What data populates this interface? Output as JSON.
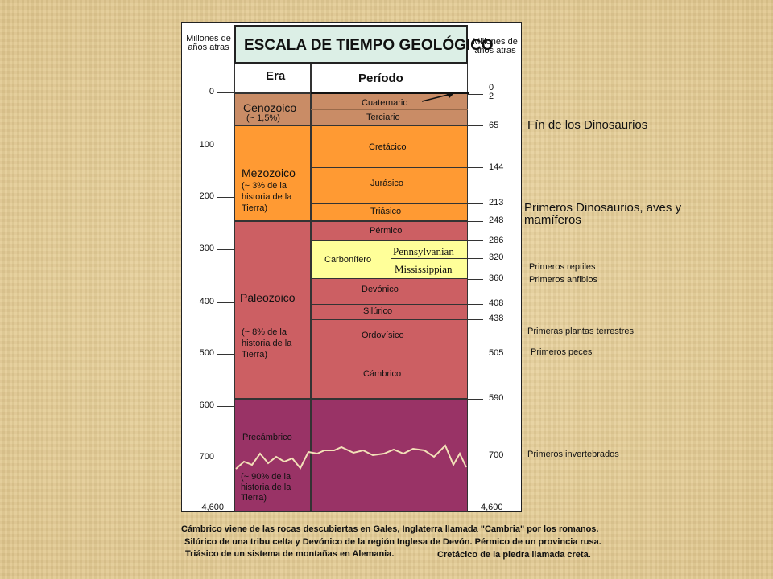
{
  "header": {
    "left_label": [
      "Millones de",
      "años atras"
    ],
    "right_label": [
      "Millones de",
      "años atras"
    ],
    "title": "ESCALA DE TIEMPO GEOLÓGICO",
    "col_era": "Era",
    "col_period": "Período"
  },
  "left_ticks": [
    "0",
    "100",
    "200",
    "300",
    "400",
    "500",
    "600",
    "700",
    "4,600"
  ],
  "eras": {
    "cenozoico": {
      "name": "Cenozoico",
      "pct": "(~ 1,5%)"
    },
    "mezozoico": {
      "name": "Mezozoico",
      "pct": [
        "(~ 3% de la",
        "historia de la",
        "Tierra)"
      ]
    },
    "paleozoico": {
      "name": "Paleozoico",
      "pct": [
        "(~ 8% de la",
        "historia de la",
        "Tierra)"
      ]
    },
    "precambrico": {
      "name": "Precámbrico",
      "pct": [
        "(~ 90% de la",
        "historia de la",
        "Tierra)"
      ]
    }
  },
  "periods": {
    "cuaternario": "Cuaternario",
    "terciario": "Terciario",
    "cretacico": "Cretácico",
    "jurasico": "Jurásico",
    "triasico": "Triásico",
    "permico": "Pérmico",
    "carbonifero": "Carbonífero",
    "pennsylvanian": "Pennsylvanian",
    "mississippian": "Mississippian",
    "devonico": "Devónico",
    "silurico": "Silúrico",
    "ordovisico": "Ordovísico",
    "cambrico": "Cámbrico"
  },
  "right_ticks": [
    "0",
    "2",
    "65",
    "144",
    "213",
    "248",
    "286",
    "320",
    "360",
    "408",
    "438",
    "505",
    "590",
    "700",
    "4,600"
  ],
  "events": {
    "fin_dinosaurios": "Fín de los Dinosaurios",
    "primeros_dinosaurios": [
      "Primeros Dinosaurios, aves y",
      "mamíferos"
    ],
    "primeros_reptiles": "Primeros reptiles",
    "primeros_anfibios": "Primeros anfibios",
    "primeras_plantas": "Primeras plantas terrestres",
    "primeros_peces": "Primeros peces",
    "primeros_invertebrados": "Primeros invertebrados"
  },
  "footnotes": [
    "Cámbrico viene de las rocas descubiertas en Gales, Inglaterra llamada \"Cambria\" por los romanos.",
    "Silúrico de una tribu celta y Devónico de la región Inglesa de Devón. Pérmico de un provincia rusa.",
    "Triásico de un sistema de montañas en Alemania.",
    "Cretácico de la piedra llamada creta."
  ],
  "colors": {
    "background": "#e6cf98",
    "title_box": "#dcefe6",
    "cenozoic": "#c98c66",
    "mesozoic": "#ff9a33",
    "paleozoic": "#cc5f63",
    "carboniferous": "#ffff99",
    "precambrian": "#993366"
  }
}
